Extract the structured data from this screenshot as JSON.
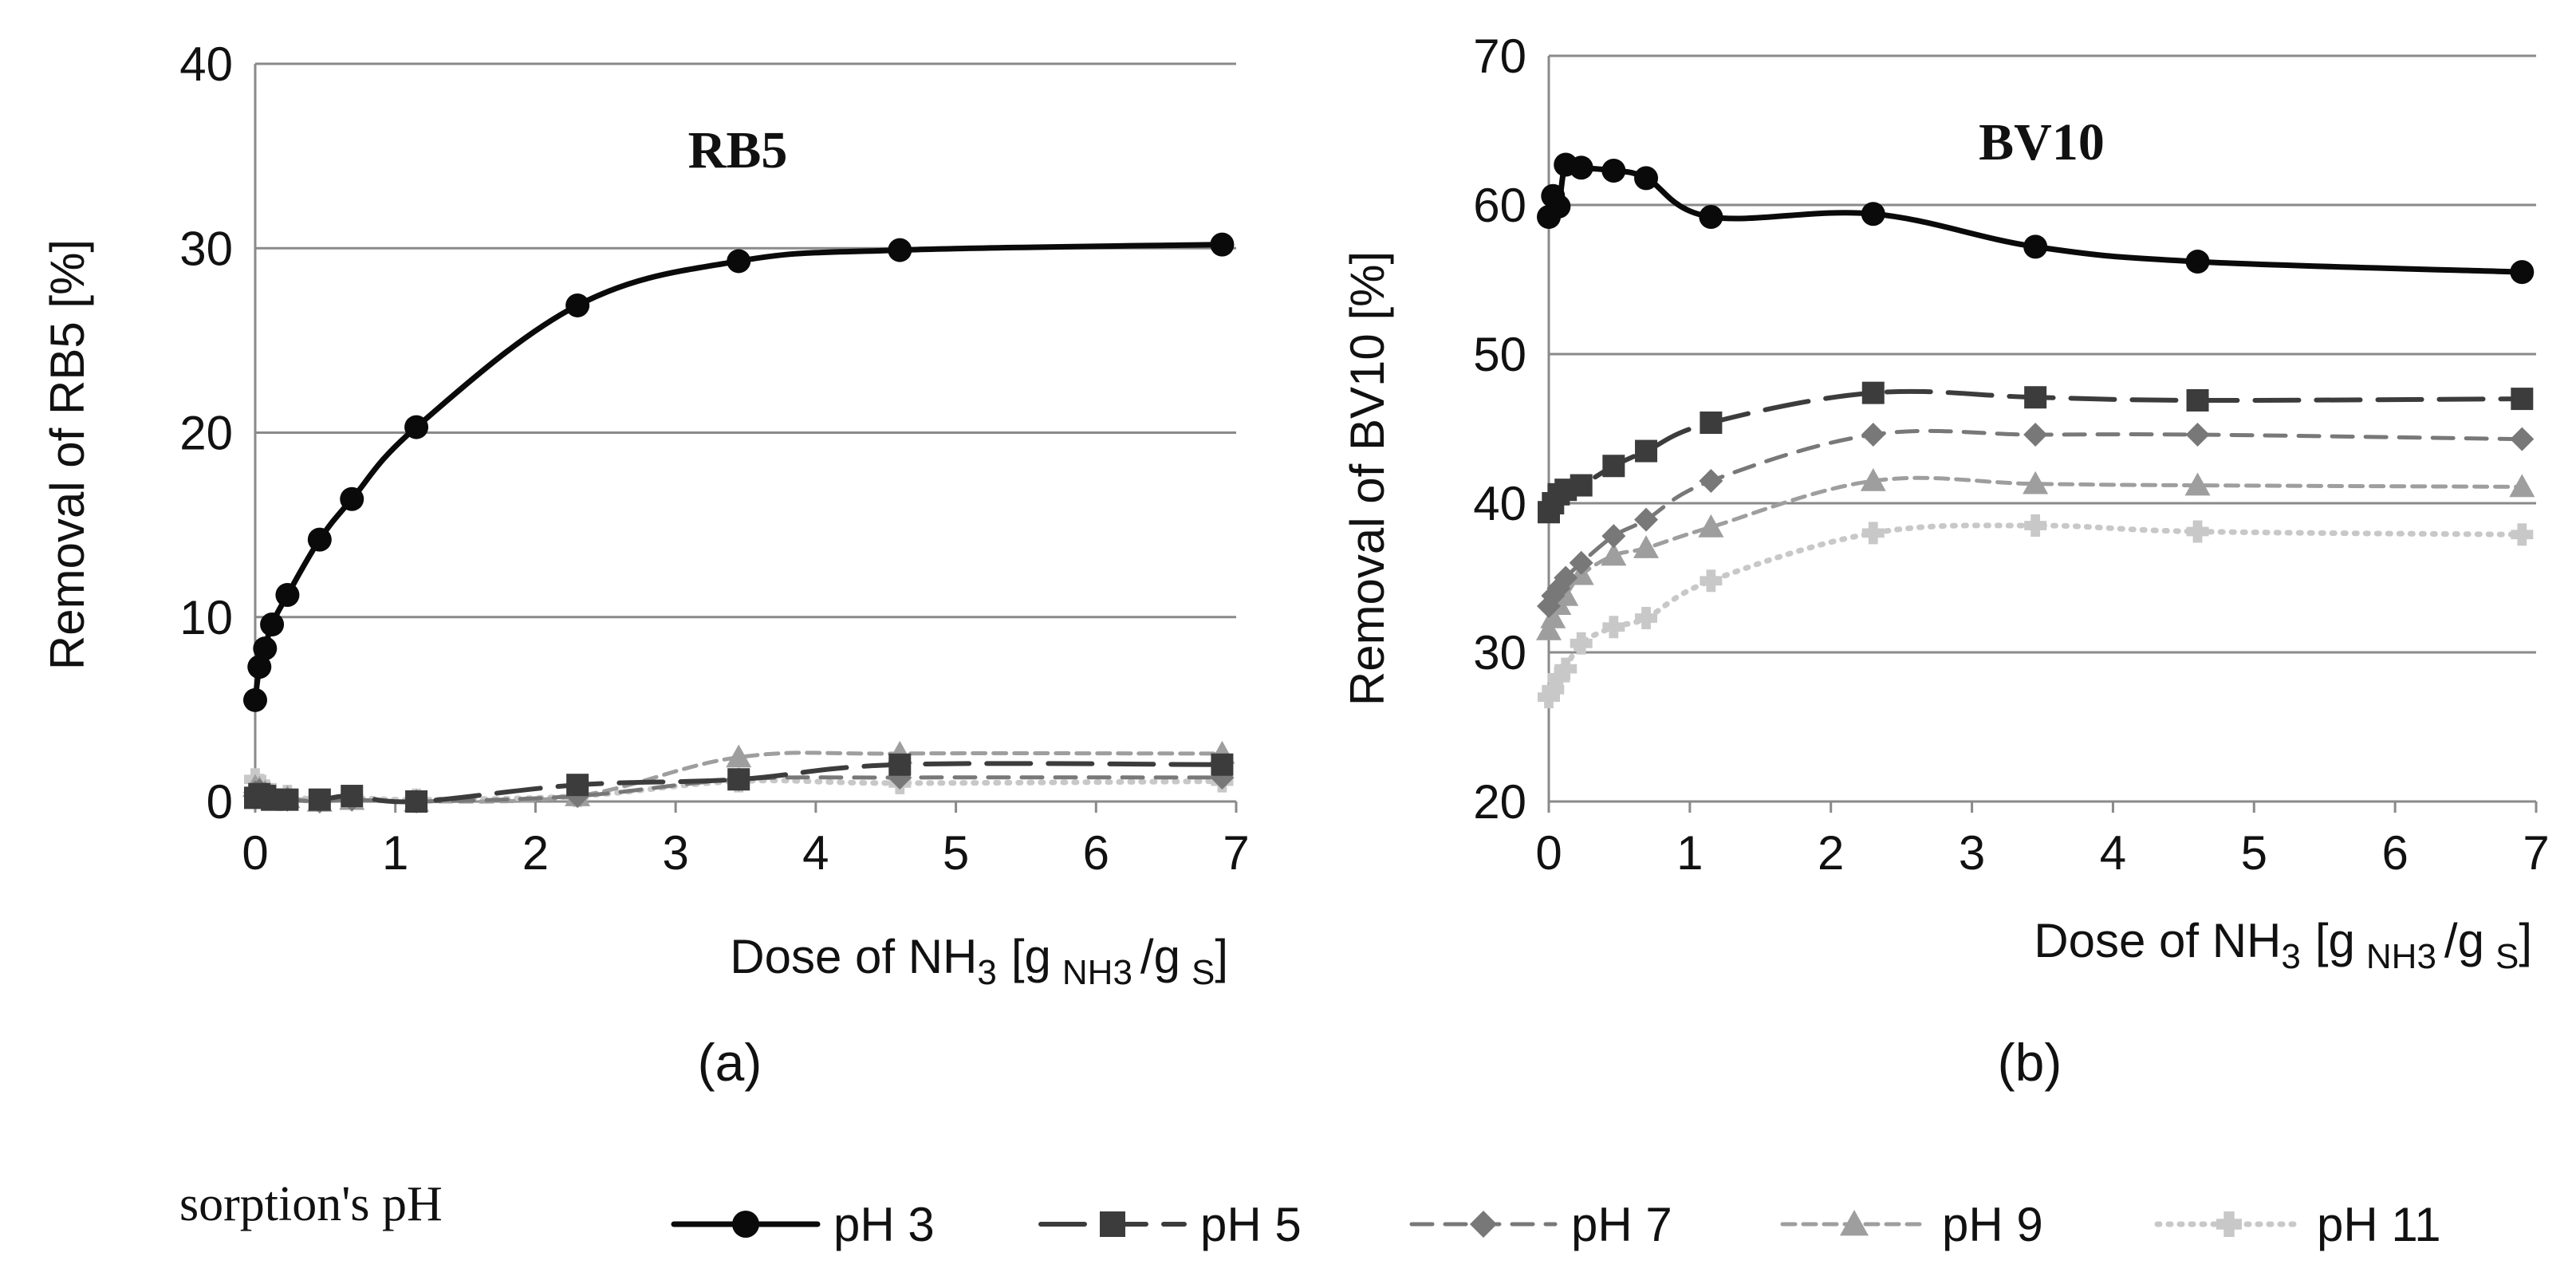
{
  "chart_data": [
    {
      "type": "line",
      "panel": "(a)",
      "title": "RB5",
      "xlabel_main": "Dose of NH",
      "xlabel_sub3": "3",
      "xlabel_bracket": "[g",
      "xlabel_subNH3": "NH3",
      "xlabel_slash": "/g",
      "xlabel_subS": "S",
      "xlabel_close": "]",
      "ylabel": "Removal of RB5  [%]",
      "xlim": [
        0,
        7
      ],
      "ylim": [
        0,
        40
      ],
      "xticks": [
        "0",
        "1",
        "2",
        "3",
        "4",
        "5",
        "6",
        "7"
      ],
      "yticks": [
        "0",
        "10",
        "20",
        "30",
        "40"
      ],
      "series": [
        {
          "name": "pH 3",
          "x": [
            0.0,
            0.03,
            0.07,
            0.12,
            0.23,
            0.46,
            0.69,
            1.15,
            2.3,
            3.45,
            4.6,
            6.9
          ],
          "y": [
            5.5,
            7.3,
            8.3,
            9.6,
            11.2,
            14.2,
            16.4,
            20.3,
            26.9,
            29.3,
            29.9,
            30.2
          ]
        },
        {
          "name": "pH 5",
          "x": [
            0.0,
            0.03,
            0.07,
            0.12,
            0.23,
            0.46,
            0.69,
            1.15,
            2.3,
            3.45,
            4.6,
            6.9
          ],
          "y": [
            0.2,
            0.4,
            0.3,
            0.1,
            0.1,
            0.1,
            0.3,
            0.0,
            0.9,
            1.2,
            2.0,
            2.0
          ]
        },
        {
          "name": "pH 7",
          "x": [
            0.0,
            0.03,
            0.07,
            0.12,
            0.23,
            0.46,
            0.69,
            1.15,
            2.3,
            3.45,
            4.6,
            6.9
          ],
          "y": [
            0.5,
            0.6,
            0.4,
            0.2,
            0.1,
            0.0,
            0.1,
            0.0,
            0.3,
            1.2,
            1.3,
            1.3
          ]
        },
        {
          "name": "pH 9",
          "x": [
            0.0,
            0.03,
            0.07,
            0.12,
            0.23,
            0.46,
            0.69,
            1.15,
            2.3,
            3.45,
            4.6,
            6.9
          ],
          "y": [
            0.8,
            0.7,
            0.5,
            0.3,
            0.2,
            0.0,
            0.1,
            0.0,
            0.3,
            2.4,
            2.6,
            2.6
          ]
        },
        {
          "name": "pH 11",
          "x": [
            0.0,
            0.03,
            0.07,
            0.12,
            0.23,
            0.46,
            0.69,
            1.15,
            2.3,
            3.45,
            4.6,
            6.9
          ],
          "y": [
            1.2,
            0.9,
            0.6,
            0.4,
            0.3,
            0.1,
            0.2,
            0.1,
            0.3,
            1.1,
            1.0,
            1.1
          ]
        }
      ]
    },
    {
      "type": "line",
      "panel": "(b)",
      "title": "BV10",
      "xlabel_main": "Dose of NH",
      "xlabel_sub3": "3",
      "xlabel_bracket": "[g",
      "xlabel_subNH3": "NH3",
      "xlabel_slash": "/g",
      "xlabel_subS": "S",
      "xlabel_close": "]",
      "ylabel": "Removal of BV10  [%]",
      "xlim": [
        0,
        7
      ],
      "ylim": [
        20,
        70
      ],
      "xticks": [
        "0",
        "1",
        "2",
        "3",
        "4",
        "5",
        "6",
        "7"
      ],
      "yticks": [
        "20",
        "30",
        "40",
        "50",
        "60",
        "70"
      ],
      "series": [
        {
          "name": "pH 3",
          "x": [
            0.0,
            0.03,
            0.07,
            0.12,
            0.23,
            0.46,
            0.69,
            1.15,
            2.3,
            3.45,
            4.6,
            6.9
          ],
          "y": [
            59.2,
            60.6,
            59.9,
            62.7,
            62.5,
            62.3,
            61.8,
            59.2,
            59.4,
            57.2,
            56.2,
            55.5
          ]
        },
        {
          "name": "pH 5",
          "x": [
            0.0,
            0.03,
            0.07,
            0.12,
            0.23,
            0.46,
            0.69,
            1.15,
            2.3,
            3.45,
            4.6,
            6.9
          ],
          "y": [
            39.4,
            40.0,
            40.6,
            40.9,
            41.2,
            42.5,
            43.5,
            45.4,
            47.4,
            47.1,
            46.9,
            47.0
          ]
        },
        {
          "name": "pH 7",
          "x": [
            0.0,
            0.03,
            0.07,
            0.12,
            0.23,
            0.46,
            0.69,
            1.15,
            2.3,
            3.45,
            4.6,
            6.9
          ],
          "y": [
            33.1,
            33.8,
            34.3,
            35.0,
            36.0,
            37.8,
            38.9,
            41.5,
            44.6,
            44.6,
            44.6,
            44.3
          ]
        },
        {
          "name": "pH 9",
          "x": [
            0.0,
            0.03,
            0.07,
            0.12,
            0.23,
            0.46,
            0.69,
            1.15,
            2.3,
            3.45,
            4.6,
            6.9
          ],
          "y": [
            31.5,
            32.3,
            33.2,
            33.8,
            35.2,
            36.5,
            37.0,
            38.4,
            41.5,
            41.3,
            41.2,
            41.1
          ]
        },
        {
          "name": "pH 11",
          "x": [
            0.0,
            0.03,
            0.07,
            0.12,
            0.23,
            0.46,
            0.69,
            1.15,
            2.3,
            3.45,
            4.6,
            6.9
          ],
          "y": [
            27.0,
            27.5,
            28.3,
            28.9,
            30.6,
            31.7,
            32.3,
            34.8,
            38.0,
            38.5,
            38.1,
            37.9
          ]
        }
      ]
    }
  ],
  "legend": {
    "title": "sorption's pH",
    "items": [
      "pH 3",
      "pH 5",
      "pH 7",
      "pH 9",
      "pH 11"
    ]
  }
}
